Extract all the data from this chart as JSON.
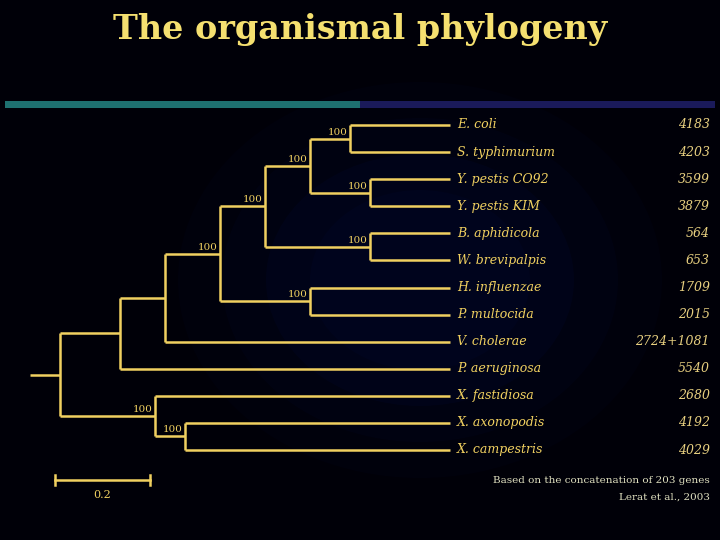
{
  "title": "The organismal phylogeny",
  "title_color": "#F5E070",
  "title_fontsize": 24,
  "bg_color": "#000008",
  "tree_color": "#F0D060",
  "text_color": "#F0D060",
  "number_color": "#E8D080",
  "footer_color": "#E0E0C0",
  "bar_teal": "#1E7070",
  "bar_navy": "#1A1A5A",
  "taxa": [
    {
      "name": "E. coli",
      "gene_count": "4183"
    },
    {
      "name": "S. typhimurium",
      "gene_count": "4203"
    },
    {
      "name": "Y. pestis CO92",
      "gene_count": "3599"
    },
    {
      "name": "Y. pestis KIM",
      "gene_count": "3879"
    },
    {
      "name": "B. aphidicola",
      "gene_count": "564"
    },
    {
      "name": "W. brevipalpis",
      "gene_count": "653"
    },
    {
      "name": "H. influenzae",
      "gene_count": "1709"
    },
    {
      "name": "P. multocida",
      "gene_count": "2015"
    },
    {
      "name": "V. cholerae",
      "gene_count": "2724+1081"
    },
    {
      "name": "P. aeruginosa",
      "gene_count": "5540"
    },
    {
      "name": "X. fastidiosa",
      "gene_count": "2680"
    },
    {
      "name": "X. axonopodis",
      "gene_count": "4192"
    },
    {
      "name": "X. campestris",
      "gene_count": "4029"
    }
  ],
  "footer_line1": "Based on the concatenation of 203 genes",
  "footer_line2": "Lerat et al., 2003",
  "scale_label": "0.2"
}
